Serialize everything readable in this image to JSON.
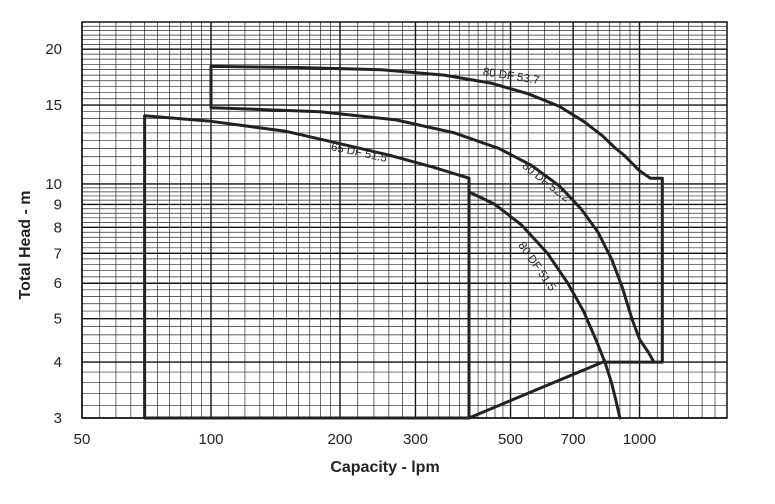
{
  "chart_data": {
    "type": "line",
    "title": "",
    "xlabel": "Capacity - lpm",
    "ylabel": "Total Head - m",
    "x_scale": "log",
    "y_scale": "log",
    "xlim": [
      50,
      1600
    ],
    "ylim": [
      3,
      23
    ],
    "x_ticks": [
      {
        "value": 50,
        "label": "50"
      },
      {
        "value": 100,
        "label": "100"
      },
      {
        "value": 200,
        "label": "200"
      },
      {
        "value": 300,
        "label": "300"
      },
      {
        "value": 500,
        "label": "500"
      },
      {
        "value": 700,
        "label": "700"
      },
      {
        "value": 1000,
        "label": "1000"
      }
    ],
    "y_ticks": [
      {
        "value": 3,
        "label": "3"
      },
      {
        "value": 4,
        "label": "4"
      },
      {
        "value": 5,
        "label": "5"
      },
      {
        "value": 6,
        "label": "6"
      },
      {
        "value": 7,
        "label": "7"
      },
      {
        "value": 8,
        "label": "8"
      },
      {
        "value": 9,
        "label": "9"
      },
      {
        "value": 10,
        "label": "10"
      },
      {
        "value": 15,
        "label": "15"
      },
      {
        "value": 20,
        "label": "20"
      }
    ],
    "grid": true,
    "legend": "none",
    "series": [
      {
        "name": "65 DF 51.5",
        "x": [
          70,
          70,
          100,
          150,
          200,
          260,
          330,
          400,
          400,
          70
        ],
        "y": [
          3,
          14.2,
          13.8,
          13.1,
          12.3,
          11.6,
          10.9,
          10.3,
          3,
          3
        ]
      },
      {
        "name": "80 DF 52.2",
        "x": [
          100,
          100,
          160,
          250,
          350,
          450,
          550,
          650,
          740,
          820,
          880,
          920,
          1000,
          1060,
          1130,
          1130,
          1000,
          880,
          820,
          400,
          100
        ],
        "y": [
          14.8,
          18.3,
          18.2,
          18.0,
          17.5,
          16.8,
          15.9,
          14.9,
          13.8,
          12.8,
          12.0,
          11.6,
          10.7,
          10.3,
          10.3,
          4,
          4,
          4,
          4,
          3,
          3
        ]
      },
      {
        "name": "80 DF 53.7",
        "x": [
          100,
          100,
          180,
          270,
          370,
          470,
          560,
          650,
          730,
          800,
          860,
          910,
          960,
          1000,
          1050,
          1080
        ],
        "y": [
          14.8,
          14.8,
          14.5,
          13.9,
          13.0,
          12.0,
          11.0,
          9.9,
          8.8,
          7.8,
          6.8,
          5.9,
          5.0,
          4.5,
          4.2,
          4.0
        ]
      },
      {
        "name": "80 DF 51.5",
        "x": [
          400,
          400,
          460,
          530,
          610,
          680,
          740,
          790,
          830,
          860,
          880,
          900
        ],
        "y": [
          3,
          9.6,
          9.0,
          8.1,
          7.0,
          6.0,
          5.2,
          4.5,
          4.0,
          3.6,
          3.3,
          3.0
        ]
      }
    ],
    "curve_labels": [
      {
        "text": "80 DF 53.7",
        "x": 430,
        "y": 17.5,
        "rotate": 9
      },
      {
        "text": "65 DF 51.5",
        "x": 190,
        "y": 11.9,
        "rotate": 12
      },
      {
        "text": "80 DF 52.2",
        "x": 530,
        "y": 10.9,
        "rotate": 38
      },
      {
        "text": "80 DF 51.5",
        "x": 520,
        "y": 7.3,
        "rotate": 55
      }
    ]
  }
}
